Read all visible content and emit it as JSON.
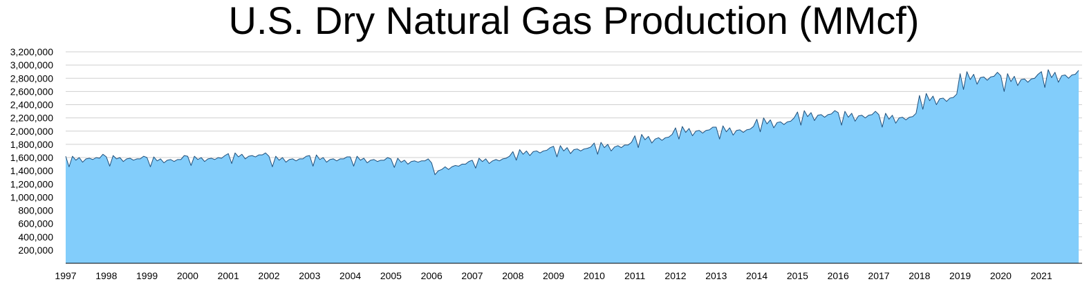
{
  "chart_data": {
    "type": "area",
    "title": "U.S. Dry Natural Gas Production (MMcf)",
    "xlabel": "",
    "ylabel": "",
    "ylim": [
      0,
      3200000
    ],
    "y_ticks": [
      200000,
      400000,
      600000,
      800000,
      1000000,
      1200000,
      1400000,
      1600000,
      1800000,
      2000000,
      2200000,
      2400000,
      2600000,
      2800000,
      3000000,
      3200000
    ],
    "y_tick_labels": [
      "200,000",
      "400,000",
      "600,000",
      "800,000",
      "1,000,000",
      "1,200,000",
      "1,400,000",
      "1,600,000",
      "1,800,000",
      "2,000,000",
      "2,200,000",
      "2,400,000",
      "2,600,000",
      "2,800,000",
      "3,000,000",
      "3,200,000"
    ],
    "x_tick_labels": [
      "1997",
      "1998",
      "1999",
      "2000",
      "2001",
      "2002",
      "2003",
      "2004",
      "2005",
      "2006",
      "2007",
      "2008",
      "2009",
      "2010",
      "2011",
      "2012",
      "2013",
      "2014",
      "2015",
      "2016",
      "2017",
      "2018",
      "2019",
      "2020",
      "2021"
    ],
    "grid": true,
    "fill_color": "#82cdfb",
    "line_color": "#1f4e79",
    "grid_color": "#cfcfcf",
    "series": [
      {
        "x_start": "1997-01",
        "x_end": "2021-12",
        "frequency": "monthly",
        "annual_avg": [
          1570000,
          1560000,
          1550000,
          1560000,
          1600000,
          1560000,
          1560000,
          1550000,
          1520000,
          1460000,
          1560000,
          1670000,
          1720000,
          1770000,
          1880000,
          2000000,
          2010000,
          2130000,
          2240000,
          2230000,
          2200000,
          2490000,
          2810000,
          2780000,
          2840000
        ],
        "values": [
          1620000,
          1460000,
          1620000,
          1560000,
          1600000,
          1530000,
          1580000,
          1590000,
          1570000,
          1600000,
          1590000,
          1650000,
          1610000,
          1470000,
          1630000,
          1580000,
          1600000,
          1540000,
          1580000,
          1590000,
          1560000,
          1580000,
          1580000,
          1620000,
          1600000,
          1460000,
          1610000,
          1550000,
          1580000,
          1520000,
          1560000,
          1570000,
          1540000,
          1570000,
          1570000,
          1630000,
          1620000,
          1480000,
          1620000,
          1570000,
          1600000,
          1540000,
          1580000,
          1590000,
          1570000,
          1600000,
          1590000,
          1630000,
          1660000,
          1510000,
          1670000,
          1610000,
          1650000,
          1580000,
          1620000,
          1630000,
          1610000,
          1640000,
          1640000,
          1670000,
          1620000,
          1460000,
          1620000,
          1560000,
          1600000,
          1530000,
          1570000,
          1580000,
          1550000,
          1580000,
          1580000,
          1620000,
          1630000,
          1470000,
          1640000,
          1570000,
          1600000,
          1530000,
          1570000,
          1580000,
          1550000,
          1580000,
          1580000,
          1610000,
          1610000,
          1470000,
          1620000,
          1560000,
          1590000,
          1520000,
          1560000,
          1570000,
          1540000,
          1560000,
          1560000,
          1600000,
          1580000,
          1450000,
          1590000,
          1530000,
          1560000,
          1500000,
          1540000,
          1550000,
          1530000,
          1550000,
          1550000,
          1580000,
          1520000,
          1340000,
          1400000,
          1420000,
          1460000,
          1420000,
          1460000,
          1480000,
          1470000,
          1500000,
          1500000,
          1540000,
          1560000,
          1440000,
          1590000,
          1540000,
          1580000,
          1510000,
          1550000,
          1570000,
          1550000,
          1580000,
          1590000,
          1620000,
          1690000,
          1560000,
          1720000,
          1650000,
          1700000,
          1630000,
          1690000,
          1700000,
          1670000,
          1700000,
          1710000,
          1750000,
          1770000,
          1610000,
          1780000,
          1700000,
          1750000,
          1660000,
          1720000,
          1730000,
          1700000,
          1730000,
          1740000,
          1760000,
          1820000,
          1650000,
          1830000,
          1750000,
          1800000,
          1700000,
          1760000,
          1780000,
          1750000,
          1790000,
          1790000,
          1830000,
          1930000,
          1750000,
          1950000,
          1870000,
          1920000,
          1820000,
          1880000,
          1900000,
          1860000,
          1900000,
          1910000,
          1950000,
          2050000,
          1880000,
          2070000,
          1980000,
          2040000,
          1930000,
          2000000,
          2010000,
          1970000,
          2010000,
          2020000,
          2060000,
          2060000,
          1880000,
          2080000,
          1990000,
          2050000,
          1940000,
          2010000,
          2020000,
          1980000,
          2020000,
          2030000,
          2070000,
          2180000,
          1990000,
          2200000,
          2110000,
          2170000,
          2050000,
          2130000,
          2140000,
          2100000,
          2140000,
          2150000,
          2200000,
          2290000,
          2090000,
          2310000,
          2220000,
          2280000,
          2160000,
          2240000,
          2250000,
          2210000,
          2250000,
          2260000,
          2310000,
          2280000,
          2090000,
          2300000,
          2210000,
          2270000,
          2150000,
          2230000,
          2240000,
          2200000,
          2240000,
          2250000,
          2300000,
          2250000,
          2060000,
          2270000,
          2180000,
          2240000,
          2120000,
          2200000,
          2210000,
          2170000,
          2210000,
          2220000,
          2270000,
          2540000,
          2330000,
          2570000,
          2460000,
          2530000,
          2400000,
          2490000,
          2500000,
          2450000,
          2500000,
          2510000,
          2560000,
          2870000,
          2630000,
          2900000,
          2780000,
          2860000,
          2710000,
          2810000,
          2820000,
          2770000,
          2820000,
          2830000,
          2890000,
          2840000,
          2600000,
          2870000,
          2750000,
          2830000,
          2690000,
          2780000,
          2790000,
          2740000,
          2790000,
          2800000,
          2860000,
          2900000,
          2660000,
          2930000,
          2810000,
          2890000,
          2740000,
          2840000,
          2850000,
          2800000,
          2850000,
          2860000,
          2920000
        ]
      }
    ]
  }
}
